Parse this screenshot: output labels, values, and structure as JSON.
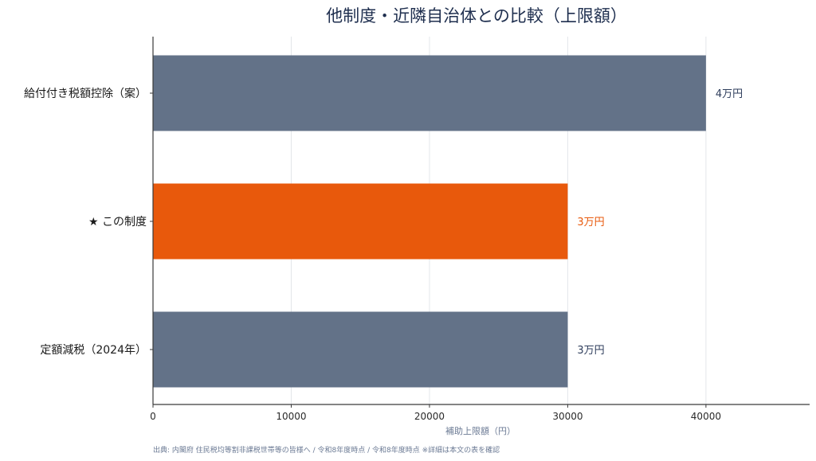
{
  "chart_data": {
    "type": "bar",
    "orientation": "horizontal",
    "title": "他制度・近隣自治体との比較（上限額）",
    "xlabel": "補助上限額（円）",
    "ylabel": "",
    "xlim": [
      0,
      47500
    ],
    "xticks": [
      0,
      10000,
      20000,
      30000,
      40000
    ],
    "tick_labels": [
      "0",
      "10000",
      "20000",
      "30000",
      "40000"
    ],
    "grid": "vertical",
    "categories": [
      "給付付き税額控除（案）",
      "★ この制度",
      "定額減税（2024年）"
    ],
    "values": [
      40000,
      30000,
      30000
    ],
    "value_labels": [
      "4万円",
      "3万円",
      "3万円"
    ],
    "highlight_index": 1,
    "colors": {
      "default_bar": "#637288",
      "highlight_bar": "#e8590c",
      "default_label": "#2f3e5c",
      "highlight_label": "#e8590c",
      "grid": "#e3e6ea",
      "axis": "#3a3a3a"
    }
  },
  "footer": {
    "source": "出典: 内閣府 住民税均等割非課税世帯等の皆様へ / 令和8年度時点 / 令和8年度時点 ※詳細は本文の表を確認"
  }
}
